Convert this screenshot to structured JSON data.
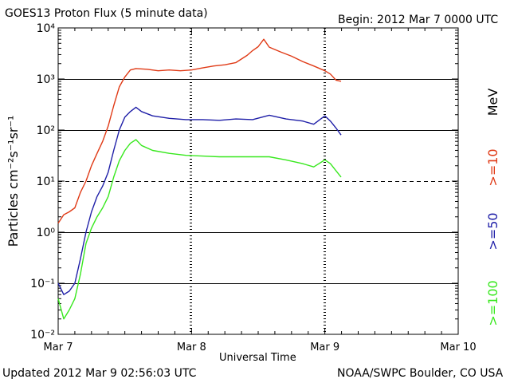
{
  "header": {
    "title": "GOES13 Proton Flux (5 minute data)",
    "begin": "Begin: 2012 Mar 7 0000 UTC"
  },
  "footer": {
    "updated": "Updated 2012 Mar  9 02:56:03 UTC",
    "credit": "NOAA/SWPC Boulder, CO USA"
  },
  "chart_data": {
    "type": "line",
    "title": "GOES13 Proton Flux (5 minute data)",
    "xlabel": "Universal Time",
    "ylabel": "Particles cm⁻²s⁻¹sr⁻¹",
    "yscale": "log",
    "ylim": [
      0.01,
      10000
    ],
    "xlim": [
      "2012-03-07 00:00",
      "2012-03-10 00:00"
    ],
    "x_ticks": [
      "Mar 7",
      "Mar 8",
      "Mar 9",
      "Mar 10"
    ],
    "y_ticks": [
      "10⁻²",
      "10⁻¹",
      "10⁰",
      "10¹",
      "10²",
      "10³",
      "10⁴"
    ],
    "grid": "horizontal lines at each decade; 10¹ line dashed",
    "legend": "right side, vertical",
    "unit_label": "MeV",
    "series": [
      {
        "name": ">=10",
        "color": "#e03a16",
        "points": [
          [
            "2012-03-07 00:00",
            1.5
          ],
          [
            "2012-03-07 01:00",
            2.2
          ],
          [
            "2012-03-07 02:00",
            2.5
          ],
          [
            "2012-03-07 03:00",
            3.0
          ],
          [
            "2012-03-07 04:00",
            6.0
          ],
          [
            "2012-03-07 05:00",
            10
          ],
          [
            "2012-03-07 06:00",
            20
          ],
          [
            "2012-03-07 07:00",
            35
          ],
          [
            "2012-03-07 08:00",
            60
          ],
          [
            "2012-03-07 09:00",
            120
          ],
          [
            "2012-03-07 10:00",
            300
          ],
          [
            "2012-03-07 11:00",
            700
          ],
          [
            "2012-03-07 12:00",
            1100
          ],
          [
            "2012-03-07 13:00",
            1500
          ],
          [
            "2012-03-07 14:00",
            1600
          ],
          [
            "2012-03-07 16:00",
            1550
          ],
          [
            "2012-03-07 18:00",
            1450
          ],
          [
            "2012-03-07 20:00",
            1500
          ],
          [
            "2012-03-07 22:00",
            1450
          ],
          [
            "2012-03-08 00:00",
            1500
          ],
          [
            "2012-03-08 02:00",
            1650
          ],
          [
            "2012-03-08 04:00",
            1800
          ],
          [
            "2012-03-08 06:00",
            1900
          ],
          [
            "2012-03-08 08:00",
            2100
          ],
          [
            "2012-03-08 10:00",
            2900
          ],
          [
            "2012-03-08 11:00",
            3600
          ],
          [
            "2012-03-08 12:00",
            4300
          ],
          [
            "2012-03-08 13:00",
            6000
          ],
          [
            "2012-03-08 14:00",
            4200
          ],
          [
            "2012-03-08 16:00",
            3400
          ],
          [
            "2012-03-08 18:00",
            2800
          ],
          [
            "2012-03-08 20:00",
            2200
          ],
          [
            "2012-03-08 22:00",
            1800
          ],
          [
            "2012-03-09 00:00",
            1450
          ],
          [
            "2012-03-09 01:00",
            1250
          ],
          [
            "2012-03-09 02:00",
            950
          ],
          [
            "2012-03-09 02:55",
            900
          ]
        ]
      },
      {
        "name": ">=50",
        "color": "#1f1fa8",
        "points": [
          [
            "2012-03-07 00:00",
            0.1
          ],
          [
            "2012-03-07 01:00",
            0.06
          ],
          [
            "2012-03-07 02:00",
            0.07
          ],
          [
            "2012-03-07 03:00",
            0.1
          ],
          [
            "2012-03-07 04:00",
            0.3
          ],
          [
            "2012-03-07 05:00",
            1.0
          ],
          [
            "2012-03-07 06:00",
            2.5
          ],
          [
            "2012-03-07 07:00",
            5.0
          ],
          [
            "2012-03-07 08:00",
            8.0
          ],
          [
            "2012-03-07 09:00",
            15
          ],
          [
            "2012-03-07 10:00",
            40
          ],
          [
            "2012-03-07 11:00",
            100
          ],
          [
            "2012-03-07 12:00",
            180
          ],
          [
            "2012-03-07 13:00",
            230
          ],
          [
            "2012-03-07 14:00",
            280
          ],
          [
            "2012-03-07 15:00",
            230
          ],
          [
            "2012-03-07 17:00",
            190
          ],
          [
            "2012-03-07 20:00",
            170
          ],
          [
            "2012-03-07 23:00",
            160
          ],
          [
            "2012-03-08 02:00",
            160
          ],
          [
            "2012-03-08 05:00",
            155
          ],
          [
            "2012-03-08 08:00",
            165
          ],
          [
            "2012-03-08 11:00",
            160
          ],
          [
            "2012-03-08 14:00",
            195
          ],
          [
            "2012-03-08 17:00",
            165
          ],
          [
            "2012-03-08 20:00",
            150
          ],
          [
            "2012-03-08 22:00",
            130
          ],
          [
            "2012-03-09 00:00",
            190
          ],
          [
            "2012-03-09 01:00",
            150
          ],
          [
            "2012-03-09 02:00",
            110
          ],
          [
            "2012-03-09 02:55",
            80
          ]
        ]
      },
      {
        "name": ">=100",
        "color": "#38e81e",
        "points": [
          [
            "2012-03-07 00:00",
            0.05
          ],
          [
            "2012-03-07 01:00",
            0.02
          ],
          [
            "2012-03-07 02:00",
            0.03
          ],
          [
            "2012-03-07 03:00",
            0.05
          ],
          [
            "2012-03-07 04:00",
            0.15
          ],
          [
            "2012-03-07 05:00",
            0.6
          ],
          [
            "2012-03-07 06:00",
            1.2
          ],
          [
            "2012-03-07 07:00",
            2.0
          ],
          [
            "2012-03-07 08:00",
            3.0
          ],
          [
            "2012-03-07 09:00",
            5.0
          ],
          [
            "2012-03-07 10:00",
            12
          ],
          [
            "2012-03-07 11:00",
            25
          ],
          [
            "2012-03-07 12:00",
            40
          ],
          [
            "2012-03-07 13:00",
            55
          ],
          [
            "2012-03-07 14:00",
            65
          ],
          [
            "2012-03-07 15:00",
            50
          ],
          [
            "2012-03-07 17:00",
            40
          ],
          [
            "2012-03-07 20:00",
            35
          ],
          [
            "2012-03-07 23:00",
            32
          ],
          [
            "2012-03-08 02:00",
            31
          ],
          [
            "2012-03-08 05:00",
            30
          ],
          [
            "2012-03-08 08:00",
            30
          ],
          [
            "2012-03-08 11:00",
            30
          ],
          [
            "2012-03-08 14:00",
            30
          ],
          [
            "2012-03-08 17:00",
            26
          ],
          [
            "2012-03-08 20:00",
            22
          ],
          [
            "2012-03-08 22:00",
            19
          ],
          [
            "2012-03-09 00:00",
            26
          ],
          [
            "2012-03-09 01:00",
            22
          ],
          [
            "2012-03-09 02:00",
            16
          ],
          [
            "2012-03-09 02:55",
            12
          ]
        ]
      }
    ]
  }
}
